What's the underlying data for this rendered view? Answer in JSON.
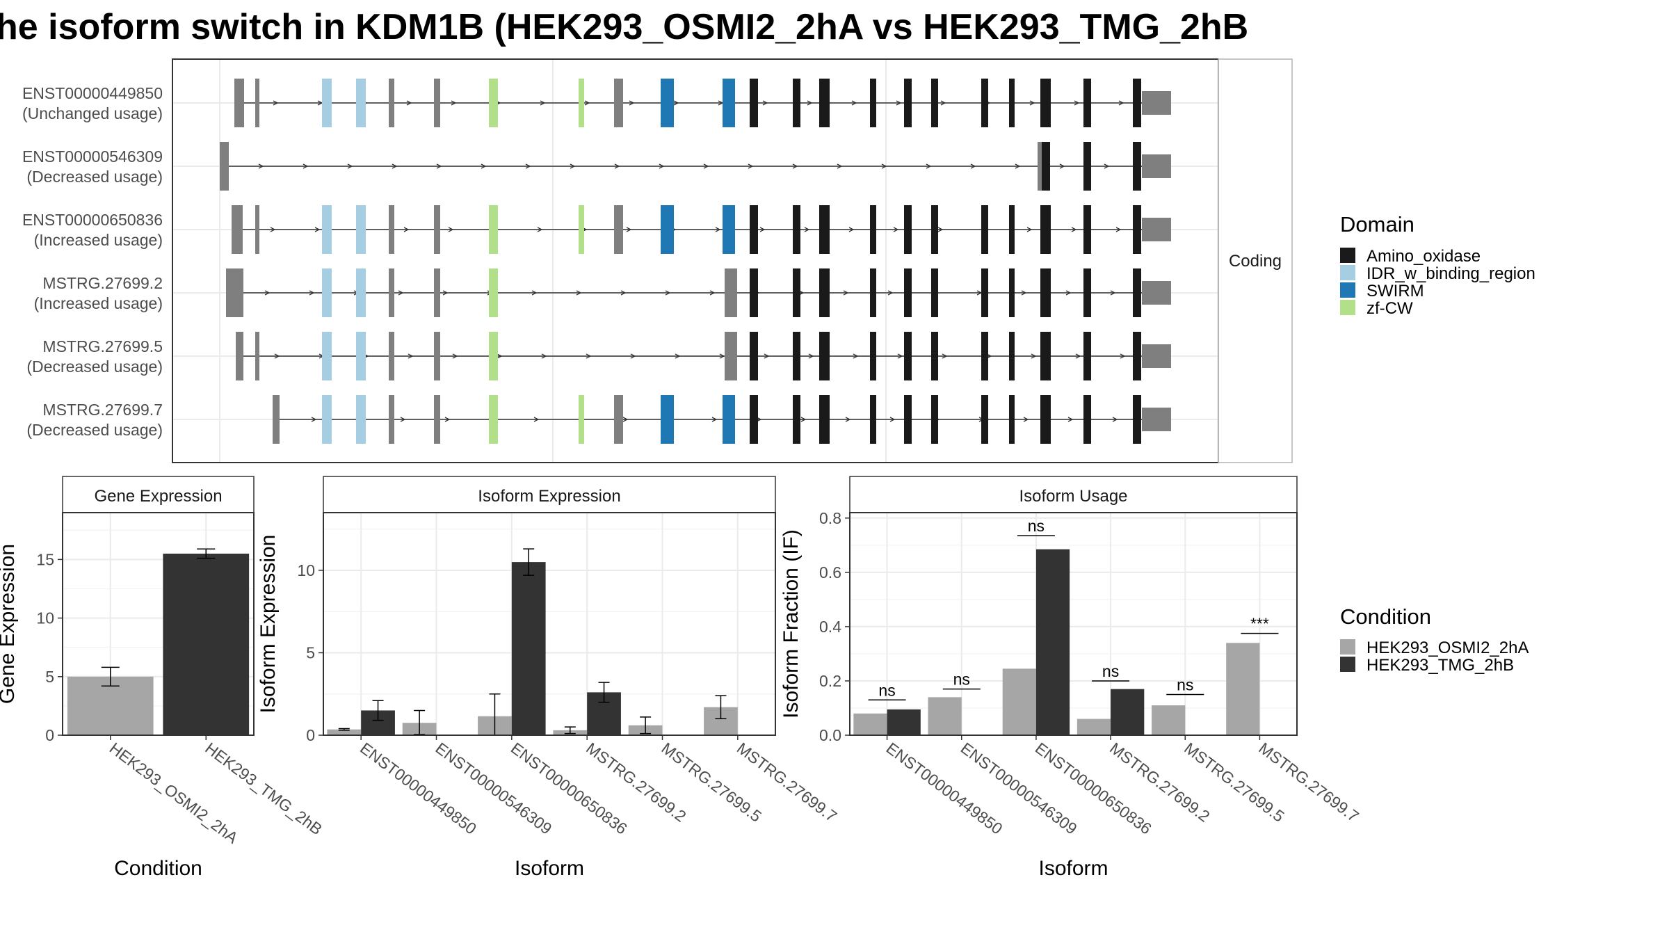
{
  "title": "he isoform switch in KDM1B (HEK293_OSMI2_2hA vs HEK293_TMG_2hB",
  "structure_panel": {
    "strip_label": "Coding",
    "transcripts": [
      {
        "name": "ENST00000449850",
        "usage": "(Unchanged usage)"
      },
      {
        "name": "ENST00000546309",
        "usage": "(Decreased usage)"
      },
      {
        "name": "ENST00000650836",
        "usage": "(Increased usage)"
      },
      {
        "name": "MSTRG.27699.2",
        "usage": "(Increased usage)"
      },
      {
        "name": "MSTRG.27699.5",
        "usage": "(Decreased usage)"
      },
      {
        "name": "MSTRG.27699.7",
        "usage": "(Decreased usage)"
      }
    ],
    "domain_legend": {
      "title": "Domain",
      "items": [
        {
          "label": "Amino_oxidase",
          "color": "#1a1a1a"
        },
        {
          "label": "IDR_w_binding_region",
          "color": "#a6cee3"
        },
        {
          "label": "SWIRM",
          "color": "#1f78b4"
        },
        {
          "label": "zf-CW",
          "color": "#b2df8a"
        }
      ]
    }
  },
  "condition_legend": {
    "title": "Condition",
    "items": [
      {
        "label": "HEK293_OSMI2_2hA",
        "color": "#a6a6a6"
      },
      {
        "label": "HEK293_TMG_2hB",
        "color": "#333333"
      }
    ]
  },
  "chart_data": [
    {
      "type": "bar",
      "title": "Gene Expression",
      "xlabel": "Condition",
      "ylabel": "Gene Expression",
      "ylim": [
        0,
        19
      ],
      "yticks": [
        0,
        5,
        10,
        15
      ],
      "categories": [
        "HEK293_OSMI2_2hA",
        "HEK293_TMG_2hB"
      ],
      "values": [
        5.0,
        15.5
      ],
      "error_low": [
        4.2,
        15.1
      ],
      "error_high": [
        5.8,
        15.9
      ]
    },
    {
      "type": "bar",
      "title": "Isoform Expression",
      "xlabel": "Isoform",
      "ylabel": "Isoform Expression",
      "ylim": [
        0,
        13.5
      ],
      "yticks": [
        0,
        5,
        10
      ],
      "categories": [
        "ENST00000449850",
        "ENST00000546309",
        "ENST00000650836",
        "MSTRG.27699.2",
        "MSTRG.27699.5",
        "MSTRG.27699.7"
      ],
      "series": [
        {
          "name": "HEK293_OSMI2_2hA",
          "values": [
            0.35,
            0.75,
            1.15,
            0.3,
            0.6,
            1.7
          ],
          "error_low": [
            0.3,
            0.05,
            0.0,
            0.1,
            0.1,
            1.0
          ],
          "error_high": [
            0.4,
            1.5,
            2.5,
            0.5,
            1.1,
            2.4
          ]
        },
        {
          "name": "HEK293_TMG_2hB",
          "values": [
            1.5,
            0.0,
            10.5,
            2.6,
            0.0,
            0.0
          ],
          "error_low": [
            0.9,
            0.0,
            9.7,
            2.0,
            0.0,
            0.0
          ],
          "error_high": [
            2.1,
            0.0,
            11.3,
            3.2,
            0.0,
            0.0
          ]
        }
      ]
    },
    {
      "type": "bar",
      "title": "Isoform Usage",
      "xlabel": "Isoform",
      "ylabel": "Isoform Fraction (IF)",
      "ylim": [
        0,
        0.82
      ],
      "yticks": [
        "0.0",
        "0.2",
        "0.4",
        "0.6",
        "0.8"
      ],
      "categories": [
        "ENST00000449850",
        "ENST00000546309",
        "ENST00000650836",
        "MSTRG.27699.2",
        "MSTRG.27699.5",
        "MSTRG.27699.7"
      ],
      "series": [
        {
          "name": "HEK293_OSMI2_2hA",
          "values": [
            0.08,
            0.14,
            0.245,
            0.06,
            0.11,
            0.34
          ]
        },
        {
          "name": "HEK293_TMG_2hB",
          "values": [
            0.095,
            0.0,
            0.685,
            0.17,
            0.0,
            0.0
          ]
        }
      ],
      "significance": [
        "ns",
        "ns",
        "ns",
        "ns",
        "ns",
        "***"
      ],
      "significance_y": [
        0.13,
        0.17,
        0.735,
        0.2,
        0.15,
        0.375
      ]
    }
  ]
}
